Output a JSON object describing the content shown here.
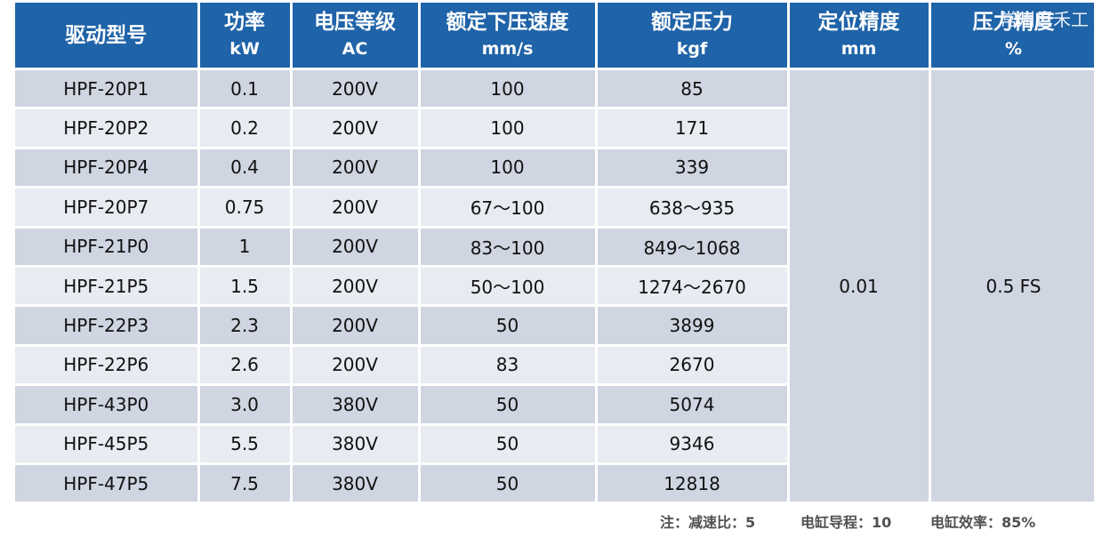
{
  "headers": [
    {
      "line1": "驱动型号",
      "line2": ""
    },
    {
      "line1": "功率",
      "line2": "kW"
    },
    {
      "line1": "电压等级",
      "line2": "AC"
    },
    {
      "line1": "额定下压速度",
      "line2": "mm/s"
    },
    {
      "line1": "额定压力",
      "line2": "kgf"
    },
    {
      "line1": "定位精度",
      "line2": "mm"
    },
    {
      "line1": "压力精度",
      "line2": "%"
    }
  ],
  "rows": [
    {
      "model": "HPF-20P1",
      "power": "0.1",
      "voltage": "200V",
      "speed": "100",
      "force": "85"
    },
    {
      "model": "HPF-20P2",
      "power": "0.2",
      "voltage": "200V",
      "speed": "100",
      "force": "171"
    },
    {
      "model": "HPF-20P4",
      "power": "0.4",
      "voltage": "200V",
      "speed": "100",
      "force": "339"
    },
    {
      "model": "HPF-20P7",
      "power": "0.75",
      "voltage": "200V",
      "speed": "67～100",
      "force": "638～935"
    },
    {
      "model": "HPF-21P0",
      "power": "1",
      "voltage": "200V",
      "speed": "83～100",
      "force": "849～1068"
    },
    {
      "model": "HPF-21P5",
      "power": "1.5",
      "voltage": "200V",
      "speed": "50～100",
      "force": "1274～2670"
    },
    {
      "model": "HPF-22P3",
      "power": "2.3",
      "voltage": "200V",
      "speed": "50",
      "force": "3899"
    },
    {
      "model": "HPF-22P6",
      "power": "2.6",
      "voltage": "200V",
      "speed": "83",
      "force": "2670"
    },
    {
      "model": "HPF-43P0",
      "power": "3.0",
      "voltage": "380V",
      "speed": "50",
      "force": "5074"
    },
    {
      "model": "HPF-45P5",
      "power": "5.5",
      "voltage": "380V",
      "speed": "50",
      "force": "9346"
    },
    {
      "model": "HPF-47P5",
      "power": "7.5",
      "voltage": "380V",
      "speed": "50",
      "force": "12818"
    }
  ],
  "positioning_accuracy": "0.01",
  "pressure_accuracy": "0.5 FS",
  "footer": {
    "note": "注：减速比：5",
    "lead": "电缸导程：10",
    "efficiency": "电缸效率：85%"
  },
  "watermark": "常州巨禾工"
}
